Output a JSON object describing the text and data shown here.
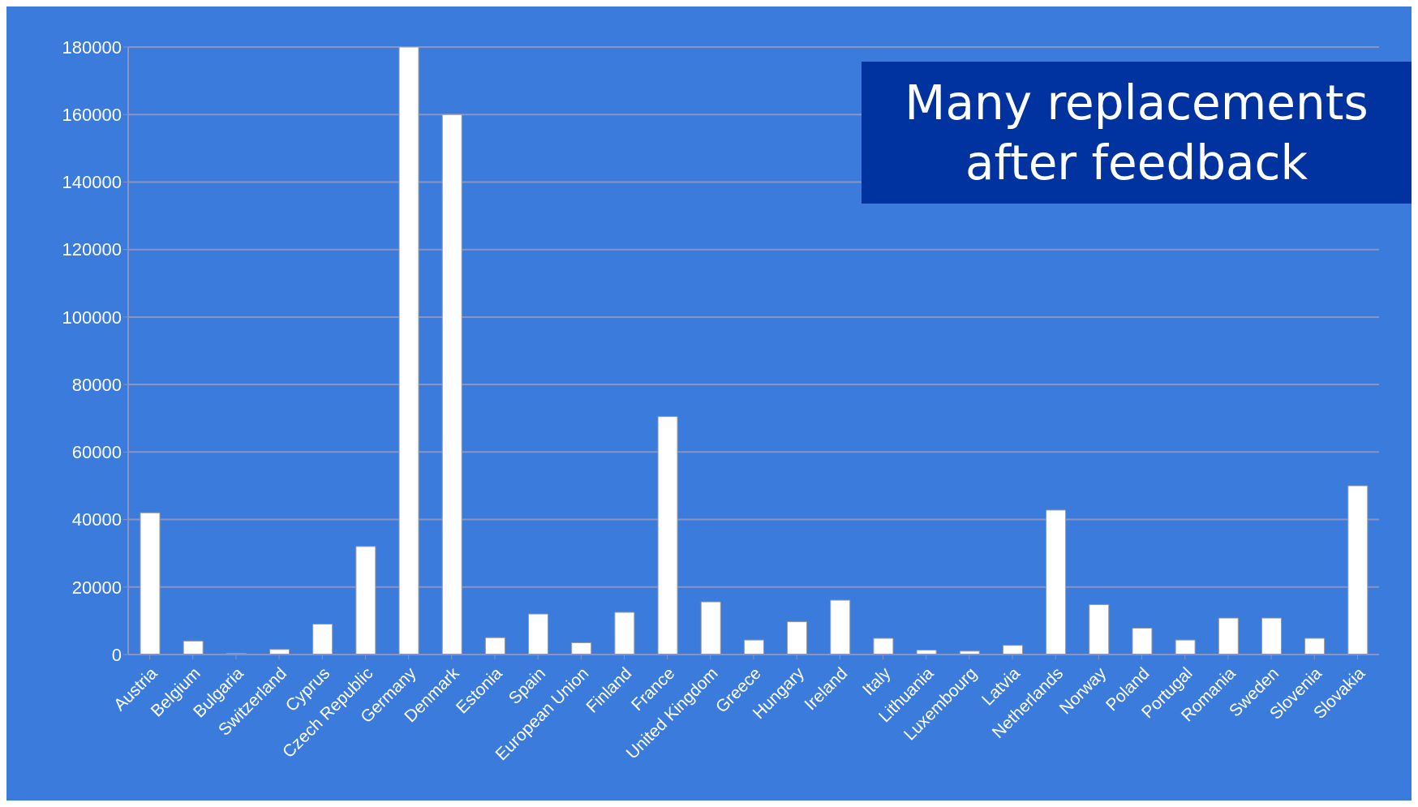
{
  "chart_data": {
    "type": "bar",
    "title": "Many replacements after feedback",
    "categories": [
      "Austria",
      "Belgium",
      "Bulgaria",
      "Switzerland",
      "Cyprus",
      "Czech Republic",
      "Germany",
      "Denmark",
      "Estonia",
      "Spain",
      "European Union",
      "Finland",
      "France",
      "United Kingdom",
      "Greece",
      "Hungary",
      "Ireland",
      "Italy",
      "Lithuania",
      "Luxembourg",
      "Latvia",
      "Netherlands",
      "Norway",
      "Poland",
      "Portugal",
      "Romania",
      "Sweden",
      "Slovenia",
      "Slovakia"
    ],
    "values": [
      42000,
      4000,
      300,
      1500,
      9000,
      32000,
      180000,
      160000,
      5000,
      12000,
      3500,
      12500,
      70500,
      15600,
      4300,
      9700,
      16100,
      4800,
      1300,
      1000,
      2700,
      42800,
      14800,
      7800,
      4300,
      10800,
      10800,
      4800,
      50000
    ],
    "color": "#ffffff",
    "ylim": [
      0,
      180000
    ],
    "yticks": [
      0,
      20000,
      40000,
      60000,
      80000,
      100000,
      120000,
      140000,
      160000,
      180000
    ],
    "grid": "y"
  }
}
